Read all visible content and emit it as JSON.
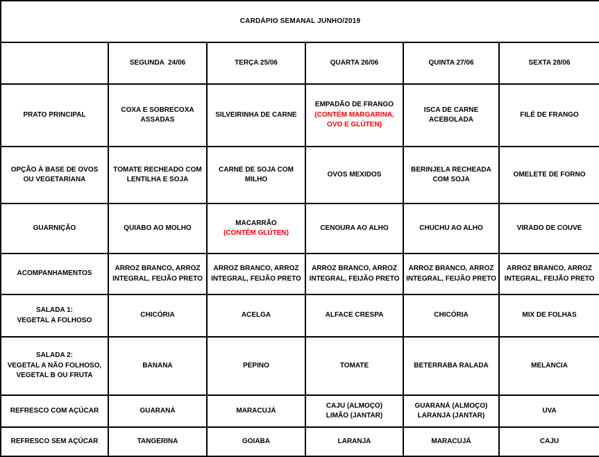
{
  "title": "CARDÁPIO SEMANAL JUNHO/2019",
  "colors": {
    "text": "#000000",
    "border": "#000000",
    "warning_red": "#ff0000"
  },
  "table": {
    "day_headers": [
      "SEGUNDA  24/06",
      "TERÇA 25/06",
      "QUARTA 26/06",
      "QUINTA 27/06",
      "SEXTA 28/06"
    ],
    "rows": [
      {
        "label": "PRATO PRINCIPAL",
        "cells": [
          {
            "text": "COXA E SOBRECOXA ASSADAS"
          },
          {
            "text": "SILVEIRINHA DE CARNE"
          },
          {
            "text": "EMPADÃO DE FRANGO",
            "warning": "(CONTÉM MARGARINA, OVO E GLÚTEN)"
          },
          {
            "text": "ISCA DE CARNE ACEBOLADA"
          },
          {
            "text": "FILÉ DE FRANGO"
          }
        ]
      },
      {
        "label": "OPÇÃO À BASE DE OVOS\nOU VEGETARIANA",
        "cells": [
          {
            "text": "TOMATE RECHEADO COM LENTILHA E SOJA"
          },
          {
            "text": "CARNE DE SOJA COM MILHO"
          },
          {
            "text": "OVOS MEXIDOS"
          },
          {
            "text": "BERINJELA RECHEADA COM SOJA"
          },
          {
            "text": "OMELETE DE FORNO"
          }
        ]
      },
      {
        "label": "GUARNIÇÃO",
        "cells": [
          {
            "text": "QUIABO AO MOLHO"
          },
          {
            "text": "MACARRÃO",
            "warning": "(CONTÉM GLÚTEN)"
          },
          {
            "text": "CENOURA AO ALHO"
          },
          {
            "text": "CHUCHU AO ALHO"
          },
          {
            "text": "VIRADO DE COUVE"
          }
        ]
      },
      {
        "label": "ACOMPANHAMENTOS",
        "cells": [
          {
            "text": "ARROZ BRANCO, ARROZ INTEGRAL, FEIJÃO PRETO"
          },
          {
            "text": "ARROZ BRANCO, ARROZ INTEGRAL, FEIJÃO PRETO"
          },
          {
            "text": "ARROZ BRANCO, ARROZ INTEGRAL, FEIJÃO PRETO"
          },
          {
            "text": "ARROZ BRANCO, ARROZ INTEGRAL, FEIJÃO PRETO"
          },
          {
            "text": "ARROZ BRANCO, ARROZ INTEGRAL, FEIJÃO PRETO"
          }
        ]
      },
      {
        "label": "SALADA 1:\nVEGETAL A FOLHOSO",
        "cells": [
          {
            "text": "CHICÓRIA"
          },
          {
            "text": "ACELGA"
          },
          {
            "text": "ALFACE CRESPA"
          },
          {
            "text": "CHICÓRIA"
          },
          {
            "text": "MIX DE FOLHAS"
          }
        ]
      },
      {
        "label": "SALADA 2:\nVEGETAL A NÃO FOLHOSO,\nVEGETAL B OU FRUTA",
        "cells": [
          {
            "text": "BANANA"
          },
          {
            "text": "PEPINO"
          },
          {
            "text": "TOMATE"
          },
          {
            "text": "BETERRABA RALADA"
          },
          {
            "text": "MELANCIA"
          }
        ]
      },
      {
        "label": "REFRESCO COM AÇÚCAR",
        "cells": [
          {
            "text": "GUARANÁ"
          },
          {
            "text": "MARACUJÁ"
          },
          {
            "text": "CAJU (ALMOÇO)\nLIMÃO (JANTAR)"
          },
          {
            "text": "GUARANÁ (ALMOÇO)\nLARANJA (JANTAR)"
          },
          {
            "text": "UVA"
          }
        ]
      },
      {
        "label": "REFRESCO SEM AÇÚCAR",
        "cells": [
          {
            "text": "TANGERINA"
          },
          {
            "text": "GOIABA"
          },
          {
            "text": "LARANJA"
          },
          {
            "text": "MARACUJÁ"
          },
          {
            "text": "CAJU"
          }
        ]
      }
    ]
  }
}
